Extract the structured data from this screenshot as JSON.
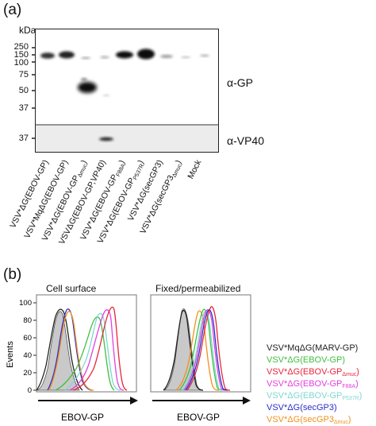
{
  "panel_a": {
    "letter": "(a)",
    "kda_label": "kDa",
    "markers": [
      "250",
      "150",
      "100",
      "75",
      "50",
      "37"
    ],
    "marker_lower": "37",
    "antibody_top": "α-GP",
    "antibody_bottom": "α-VP40",
    "lanes": [
      {
        "main": "VSV*ΔG(EBOV-GP)",
        "sub": ""
      },
      {
        "main": "VSV*MqΔG(EBOV-GP)",
        "sub": ""
      },
      {
        "main": "VSV*ΔG(EBOV-GP",
        "sub": "Δmuc",
        "tail": ")"
      },
      {
        "main": "VSVΔG(EBOV-GP,VP40)",
        "sub": ""
      },
      {
        "main": "VSV*ΔG(EBOV-GP",
        "sub": "F88A",
        "tail": ")"
      },
      {
        "main": "VSV*ΔG(EBOV-GP",
        "sub": "P537R",
        "tail": ")"
      },
      {
        "main": "VSV*ΔG(secGP3)",
        "sub": ""
      },
      {
        "main": "VSV*ΔG(secGP3",
        "sub": "Δmuc",
        "tail": ")"
      },
      {
        "main": "Mock",
        "sub": ""
      }
    ]
  },
  "panel_b": {
    "letter": "(b)",
    "left_title": "Cell surface",
    "right_title": "Fixed/permeabilized",
    "y_label": "Events",
    "x_label": "EBOV-GP",
    "y_ticks": [
      "100",
      "80",
      "60",
      "40",
      "20",
      "0"
    ],
    "legend": [
      {
        "main": "VSV*MqΔG(MARV-GP)",
        "sub": "",
        "tail": "",
        "color": "#222222"
      },
      {
        "main": "VSV*ΔG(EBOV-GP)",
        "sub": "",
        "tail": "",
        "color": "#3fbf3f"
      },
      {
        "main": "VSV*ΔG(EBOV-GP",
        "sub": "Δmuc",
        "tail": ")",
        "color": "#e8253a"
      },
      {
        "main": "VSV*ΔG(EBOV-GP",
        "sub": "F88A",
        "tail": ")",
        "color": "#e040e0"
      },
      {
        "main": "VSV*ΔG(EBOV-GP",
        "sub": "P537R",
        "tail": ")",
        "color": "#7fd8d0"
      },
      {
        "main": "VSV*ΔG(secGP3)",
        "sub": "",
        "tail": "",
        "color": "#2630c8"
      },
      {
        "main": "VSV*ΔG(secGP3",
        "sub": "Δmuc",
        "tail": ")",
        "color": "#f29020"
      }
    ]
  }
}
